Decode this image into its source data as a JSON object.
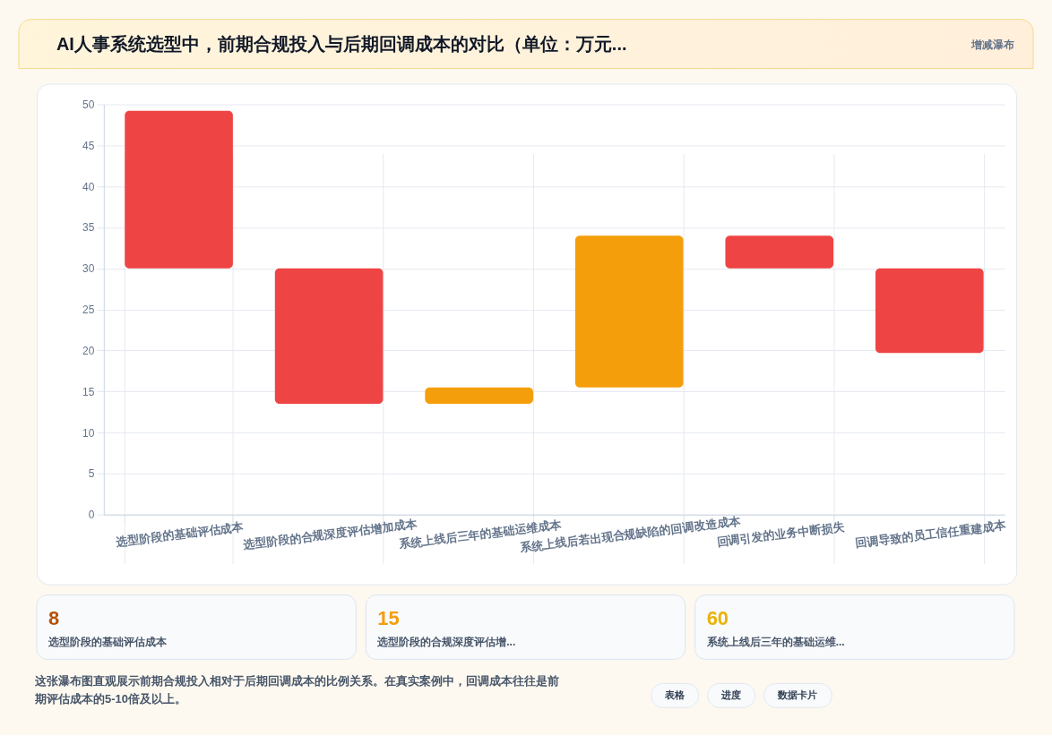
{
  "chart_data": [
    {
      "type": "bar",
      "title": "AI人事系统选型中，前期合规投入与后期回调成本的对比（单位：万元...",
      "subtitle": "增减瀑布",
      "categories": [
        "选型阶段的基础评估成本",
        "选型阶段的合规深度评估增加成本",
        "系统上线后三年的基础运维成本",
        "系统上线后若出现合规缺陷的回调改造成本",
        "回调引发的业务中断损失",
        "回调导致的员工信任重建成本"
      ],
      "base": [
        49.2,
        30,
        13.5,
        15.5,
        34,
        30
      ],
      "values": [
        -19.2,
        -16.5,
        2,
        18.5,
        -4,
        -10.3
      ],
      "colors": [
        "#ef4444",
        "#ef4444",
        "#f59e0b",
        "#f59e0b",
        "#ef4444",
        "#ef4444"
      ],
      "ylim": [
        0,
        50
      ],
      "yticks": [
        0,
        5,
        10,
        15,
        20,
        25,
        30,
        35,
        40,
        45,
        50
      ],
      "grid": true,
      "annotations": [
        "这张瀑布图直观展示前期合规投入相对于后期回调成本的比例关系。在真实案例中，回调成本往往是前期评估成本的5-10倍及以上。"
      ]
    },
    {
      "type": "other",
      "categories": [
        "选型阶段的基础评估成本",
        "选型阶段的合规深度评估增...",
        "系统上线后三年的基础运维..."
      ],
      "values": [
        8,
        15,
        60
      ],
      "data_labels": true
    },
    {
      "type": "other",
      "categories": [
        "表格",
        "进度",
        "数据卡片"
      ]
    }
  ]
}
